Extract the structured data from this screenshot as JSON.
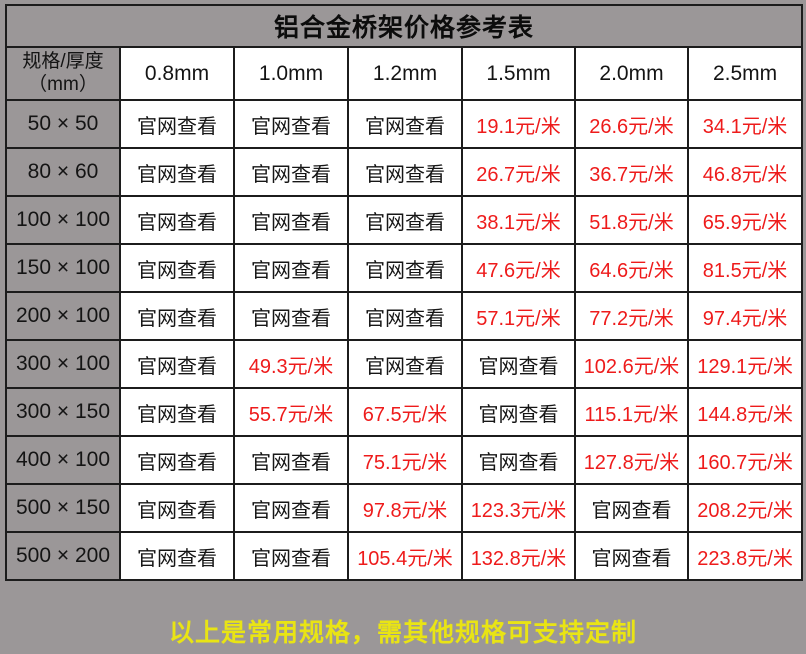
{
  "title": "铝合金桥架价格参考表",
  "footer_note": "以上是常用规格，需其他规格可支持定制",
  "spec_header": {
    "line1": "规格/厚度",
    "line2": "（mm）"
  },
  "chart_data": {
    "type": "table",
    "title": "铝合金桥架价格参考表",
    "columns": [
      "规格/厚度（mm）",
      "0.8mm",
      "1.0mm",
      "1.2mm",
      "1.5mm",
      "2.0mm",
      "2.5mm"
    ],
    "rows": [
      {
        "spec": "50 × 50",
        "cells": [
          "官网查看",
          "官网查看",
          "官网查看",
          "19.1元/米",
          "26.6元/米",
          "34.1元/米"
        ]
      },
      {
        "spec": "80 × 60",
        "cells": [
          "官网查看",
          "官网查看",
          "官网查看",
          "26.7元/米",
          "36.7元/米",
          "46.8元/米"
        ]
      },
      {
        "spec": "100 × 100",
        "cells": [
          "官网查看",
          "官网查看",
          "官网查看",
          "38.1元/米",
          "51.8元/米",
          "65.9元/米"
        ]
      },
      {
        "spec": "150 × 100",
        "cells": [
          "官网查看",
          "官网查看",
          "官网查看",
          "47.6元/米",
          "64.6元/米",
          "81.5元/米"
        ]
      },
      {
        "spec": "200 × 100",
        "cells": [
          "官网查看",
          "官网查看",
          "官网查看",
          "57.1元/米",
          "77.2元/米",
          "97.4元/米"
        ]
      },
      {
        "spec": "300 × 100",
        "cells": [
          "官网查看",
          "49.3元/米",
          "官网查看",
          "官网查看",
          "102.6元/米",
          "129.1元/米"
        ]
      },
      {
        "spec": "300 × 150",
        "cells": [
          "官网查看",
          "55.7元/米",
          "67.5元/米",
          "官网查看",
          "115.1元/米",
          "144.8元/米"
        ]
      },
      {
        "spec": "400 × 100",
        "cells": [
          "官网查看",
          "官网查看",
          "75.1元/米",
          "官网查看",
          "127.8元/米",
          "160.7元/米"
        ]
      },
      {
        "spec": "500 × 150",
        "cells": [
          "官网查看",
          "官网查看",
          "97.8元/米",
          "123.3元/米",
          "官网查看",
          "208.2元/米"
        ]
      },
      {
        "spec": "500 × 200",
        "cells": [
          "官网查看",
          "官网查看",
          "105.4元/米",
          "132.8元/米",
          "官网查看",
          "223.8元/米"
        ]
      }
    ],
    "unit": "元/米",
    "link_text": "官网查看"
  },
  "colors": {
    "background_gray": "#9b9798",
    "cell_white": "#ffffff",
    "border_black": "#1c1c1c",
    "price_red": "#ee1b1b",
    "footer_yellow": "#e9e414",
    "text_black": "#141414"
  }
}
